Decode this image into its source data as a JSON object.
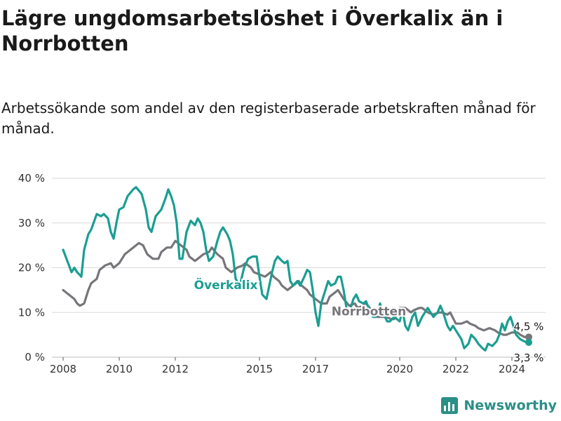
{
  "title": "Lägre ungdomsarbetslöshet i Överkalix än i Norrbotten",
  "subtitle": "Arbetssökande som andel av den registerbaserade arbetskraften månad för månad.",
  "brand": "Newsworthy",
  "colors": {
    "overkalix": "#1a9e92",
    "norrbotten": "#77757a",
    "grid": "#d9d9d9",
    "text": "#1a1a1a"
  },
  "chart_data": {
    "type": "line",
    "ylim": [
      0,
      40
    ],
    "y_ticks": [
      0,
      10,
      20,
      30,
      40
    ],
    "y_tick_labels": [
      "0 %",
      "10 %",
      "20 %",
      "30 %",
      "40 %"
    ],
    "x_range": [
      2007.6,
      2025.2
    ],
    "x_ticks": [
      2008,
      2010,
      2012,
      2015,
      2017,
      2020,
      2022,
      2024
    ],
    "x_tick_labels": [
      "2008",
      "2010",
      "2012",
      "2015",
      "2017",
      "2020",
      "2022",
      "2024"
    ],
    "grid": true,
    "series": [
      {
        "name": "Norrbotten",
        "color": "#77757a",
        "points": [
          [
            2008.0,
            15
          ],
          [
            2008.2,
            14
          ],
          [
            2008.4,
            13
          ],
          [
            2008.5,
            12
          ],
          [
            2008.6,
            11.5
          ],
          [
            2008.75,
            12
          ],
          [
            2008.9,
            15
          ],
          [
            2009.0,
            16.5
          ],
          [
            2009.2,
            17.5
          ],
          [
            2009.3,
            19.5
          ],
          [
            2009.5,
            20.5
          ],
          [
            2009.7,
            21
          ],
          [
            2009.8,
            20
          ],
          [
            2010.0,
            21
          ],
          [
            2010.2,
            23
          ],
          [
            2010.4,
            24
          ],
          [
            2010.6,
            25
          ],
          [
            2010.7,
            25.5
          ],
          [
            2010.85,
            25
          ],
          [
            2011.0,
            23
          ],
          [
            2011.2,
            22
          ],
          [
            2011.4,
            22
          ],
          [
            2011.5,
            23.5
          ],
          [
            2011.7,
            24.5
          ],
          [
            2011.85,
            24.5
          ],
          [
            2012.0,
            26
          ],
          [
            2012.2,
            25
          ],
          [
            2012.4,
            24
          ],
          [
            2012.5,
            22.5
          ],
          [
            2012.7,
            21.5
          ],
          [
            2012.8,
            22
          ],
          [
            2013.0,
            23
          ],
          [
            2013.2,
            23.5
          ],
          [
            2013.3,
            24.5
          ],
          [
            2013.5,
            23
          ],
          [
            2013.7,
            22
          ],
          [
            2013.8,
            20
          ],
          [
            2014.0,
            19
          ],
          [
            2014.2,
            20
          ],
          [
            2014.4,
            20.5
          ],
          [
            2014.5,
            21
          ],
          [
            2014.7,
            20
          ],
          [
            2014.8,
            19
          ],
          [
            2015.0,
            18.5
          ],
          [
            2015.2,
            18
          ],
          [
            2015.4,
            19
          ],
          [
            2015.5,
            18
          ],
          [
            2015.7,
            17
          ],
          [
            2015.8,
            16
          ],
          [
            2016.0,
            15
          ],
          [
            2016.2,
            16
          ],
          [
            2016.4,
            17
          ],
          [
            2016.5,
            16
          ],
          [
            2016.7,
            15
          ],
          [
            2016.8,
            14
          ],
          [
            2017.0,
            13
          ],
          [
            2017.2,
            12
          ],
          [
            2017.4,
            12
          ],
          [
            2017.5,
            13.5
          ],
          [
            2017.7,
            14.5
          ],
          [
            2017.8,
            15
          ],
          [
            2018.0,
            13
          ],
          [
            2018.2,
            11.5
          ],
          [
            2018.4,
            12
          ],
          [
            2018.5,
            11
          ],
          [
            2018.7,
            11.5
          ],
          [
            2018.8,
            12
          ],
          [
            2019.0,
            10.5
          ],
          [
            2019.2,
            9
          ],
          [
            2019.4,
            9
          ],
          [
            2019.5,
            9
          ],
          [
            2019.7,
            8.5
          ],
          [
            2019.8,
            8.5
          ],
          [
            2020.0,
            11
          ],
          [
            2020.2,
            11
          ],
          [
            2020.4,
            10
          ],
          [
            2020.5,
            10.5
          ],
          [
            2020.7,
            11
          ],
          [
            2020.8,
            11
          ],
          [
            2021.0,
            10
          ],
          [
            2021.2,
            9.5
          ],
          [
            2021.4,
            10
          ],
          [
            2021.5,
            10
          ],
          [
            2021.7,
            9.5
          ],
          [
            2021.8,
            10
          ],
          [
            2022.0,
            7.5
          ],
          [
            2022.2,
            7.5
          ],
          [
            2022.4,
            8
          ],
          [
            2022.5,
            7.5
          ],
          [
            2022.7,
            7
          ],
          [
            2022.8,
            6.5
          ],
          [
            2023.0,
            6
          ],
          [
            2023.2,
            6.5
          ],
          [
            2023.4,
            6
          ],
          [
            2023.5,
            5.5
          ],
          [
            2023.7,
            5
          ],
          [
            2023.8,
            5
          ],
          [
            2024.0,
            5.5
          ],
          [
            2024.2,
            5.5
          ],
          [
            2024.3,
            5
          ],
          [
            2024.45,
            4.5
          ],
          [
            2024.6,
            4.5
          ]
        ]
      },
      {
        "name": "Överkalix",
        "color": "#1a9e92",
        "points": [
          [
            2008.0,
            24
          ],
          [
            2008.15,
            21.5
          ],
          [
            2008.3,
            19
          ],
          [
            2008.4,
            20
          ],
          [
            2008.5,
            19
          ],
          [
            2008.65,
            18
          ],
          [
            2008.75,
            24
          ],
          [
            2008.9,
            27.5
          ],
          [
            2009.0,
            28.5
          ],
          [
            2009.2,
            32
          ],
          [
            2009.35,
            31.5
          ],
          [
            2009.45,
            32
          ],
          [
            2009.6,
            31
          ],
          [
            2009.7,
            28
          ],
          [
            2009.8,
            26.5
          ],
          [
            2009.9,
            30
          ],
          [
            2010.0,
            33
          ],
          [
            2010.15,
            33.5
          ],
          [
            2010.3,
            36
          ],
          [
            2010.5,
            37.5
          ],
          [
            2010.6,
            38
          ],
          [
            2010.8,
            36.5
          ],
          [
            2010.95,
            33
          ],
          [
            2011.05,
            29
          ],
          [
            2011.15,
            28
          ],
          [
            2011.3,
            31.5
          ],
          [
            2011.5,
            33
          ],
          [
            2011.65,
            35.5
          ],
          [
            2011.75,
            37.5
          ],
          [
            2011.85,
            36
          ],
          [
            2011.95,
            34
          ],
          [
            2012.05,
            30
          ],
          [
            2012.15,
            22
          ],
          [
            2012.25,
            22
          ],
          [
            2012.4,
            28
          ],
          [
            2012.55,
            30.5
          ],
          [
            2012.7,
            29.5
          ],
          [
            2012.8,
            31
          ],
          [
            2012.9,
            30
          ],
          [
            2013.0,
            28
          ],
          [
            2013.1,
            24
          ],
          [
            2013.2,
            21.5
          ],
          [
            2013.35,
            22.5
          ],
          [
            2013.5,
            26
          ],
          [
            2013.6,
            28
          ],
          [
            2013.7,
            29
          ],
          [
            2013.85,
            27.5
          ],
          [
            2013.95,
            26
          ],
          [
            2014.05,
            23
          ],
          [
            2014.15,
            17.5
          ],
          [
            2014.3,
            16
          ],
          [
            2014.45,
            20
          ],
          [
            2014.6,
            22
          ],
          [
            2014.75,
            22.5
          ],
          [
            2014.9,
            22.5
          ],
          [
            2015.0,
            18
          ],
          [
            2015.1,
            14
          ],
          [
            2015.25,
            13
          ],
          [
            2015.35,
            16
          ],
          [
            2015.45,
            19
          ],
          [
            2015.55,
            21.5
          ],
          [
            2015.65,
            22.5
          ],
          [
            2015.8,
            21.5
          ],
          [
            2015.9,
            21
          ],
          [
            2016.0,
            21.5
          ],
          [
            2016.1,
            17
          ],
          [
            2016.2,
            16
          ],
          [
            2016.35,
            17
          ],
          [
            2016.45,
            16
          ],
          [
            2016.6,
            18
          ],
          [
            2016.7,
            19.5
          ],
          [
            2016.8,
            19
          ],
          [
            2016.9,
            15
          ],
          [
            2017.0,
            10
          ],
          [
            2017.1,
            7
          ],
          [
            2017.2,
            12
          ],
          [
            2017.35,
            15
          ],
          [
            2017.45,
            17
          ],
          [
            2017.55,
            16
          ],
          [
            2017.7,
            16.5
          ],
          [
            2017.8,
            18
          ],
          [
            2017.9,
            18
          ],
          [
            2018.0,
            15
          ],
          [
            2018.1,
            11
          ],
          [
            2018.2,
            10
          ],
          [
            2018.35,
            13
          ],
          [
            2018.45,
            14
          ],
          [
            2018.55,
            12.5
          ],
          [
            2018.7,
            12
          ],
          [
            2018.8,
            12.5
          ],
          [
            2018.95,
            10
          ],
          [
            2019.05,
            9
          ],
          [
            2019.15,
            9
          ],
          [
            2019.3,
            12
          ],
          [
            2019.4,
            10
          ],
          [
            2019.55,
            8
          ],
          [
            2019.65,
            8
          ],
          [
            2019.8,
            9
          ],
          [
            2019.9,
            8.5
          ],
          [
            2020.0,
            8
          ],
          [
            2020.1,
            10.5
          ],
          [
            2020.2,
            7
          ],
          [
            2020.3,
            6
          ],
          [
            2020.45,
            9
          ],
          [
            2020.55,
            10
          ],
          [
            2020.65,
            7
          ],
          [
            2020.8,
            9
          ],
          [
            2020.9,
            10
          ],
          [
            2021.0,
            11
          ],
          [
            2021.1,
            10
          ],
          [
            2021.2,
            9
          ],
          [
            2021.35,
            10
          ],
          [
            2021.45,
            11.5
          ],
          [
            2021.55,
            10
          ],
          [
            2021.7,
            7
          ],
          [
            2021.8,
            6
          ],
          [
            2021.9,
            7
          ],
          [
            2022.0,
            6
          ],
          [
            2022.1,
            5
          ],
          [
            2022.2,
            4
          ],
          [
            2022.3,
            2
          ],
          [
            2022.45,
            3
          ],
          [
            2022.55,
            5
          ],
          [
            2022.7,
            4
          ],
          [
            2022.8,
            3
          ],
          [
            2022.95,
            2
          ],
          [
            2023.05,
            1.5
          ],
          [
            2023.15,
            3
          ],
          [
            2023.3,
            2.5
          ],
          [
            2023.45,
            3.5
          ],
          [
            2023.55,
            5
          ],
          [
            2023.65,
            7.5
          ],
          [
            2023.75,
            6
          ],
          [
            2023.85,
            8
          ],
          [
            2023.95,
            9
          ],
          [
            2024.05,
            7
          ],
          [
            2024.15,
            5
          ],
          [
            2024.3,
            4
          ],
          [
            2024.45,
            3.5
          ],
          [
            2024.6,
            3.3
          ]
        ]
      }
    ],
    "annotations": {
      "overkalix_label": "Överkalix",
      "norrbotten_label": "Norrbotten",
      "end_value_norrbotten": "4,5 %",
      "end_value_overkalix": "3,3 %"
    }
  }
}
